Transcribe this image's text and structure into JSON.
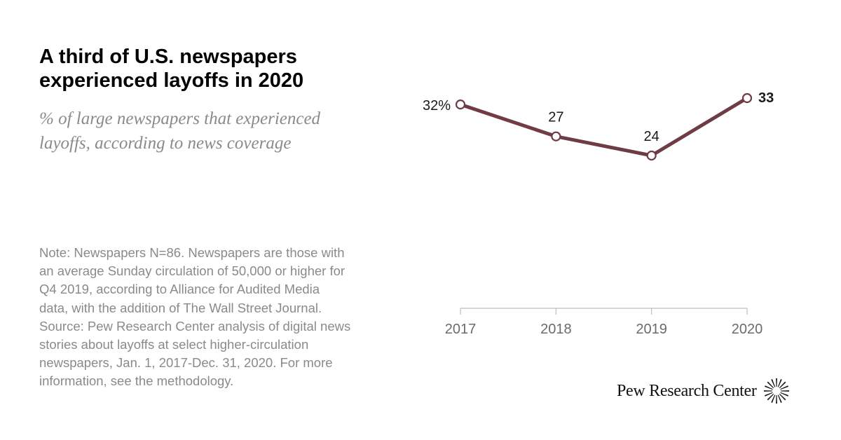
{
  "title": "A third of U.S. newspapers\nexperienced layoffs in 2020",
  "subtitle": "% of large newspapers that experienced\nlayoffs, according to news coverage",
  "note": "Note: Newspapers N=86. Newspapers are those with\nan average Sunday circulation of 50,000 or higher for\nQ4 2019, according to Alliance for Audited Media\ndata, with the addition of The Wall Street Journal.\nSource: Pew Research Center analysis of digital news\nstories about layoffs at select higher-circulation\nnewspapers, Jan. 1, 2017-Dec. 31, 2020. For more\ninformation, see the methodology.",
  "branding": {
    "name": "Pew Research Center",
    "icon": "pew-sunburst-icon"
  },
  "colors": {
    "line": "#6f3b44",
    "marker_fill": "#ffffff",
    "axis": "#bdbdbd",
    "label": "#1a1a1a",
    "muted_text": "#8a8a8a"
  },
  "chart_data": {
    "type": "line",
    "categories": [
      "2017",
      "2018",
      "2019",
      "2020"
    ],
    "series": [
      {
        "values": [
          32,
          27,
          24,
          33
        ],
        "data_labels": [
          "32%",
          "27",
          "24",
          "33"
        ],
        "emphasized_last_label": true
      }
    ],
    "title": "A third of U.S. newspapers experienced layoffs in 2020",
    "subtitle": "% of large newspapers that experienced layoffs, according to news coverage",
    "xlabel": "",
    "ylabel": "",
    "grid": false,
    "legend": "none"
  }
}
